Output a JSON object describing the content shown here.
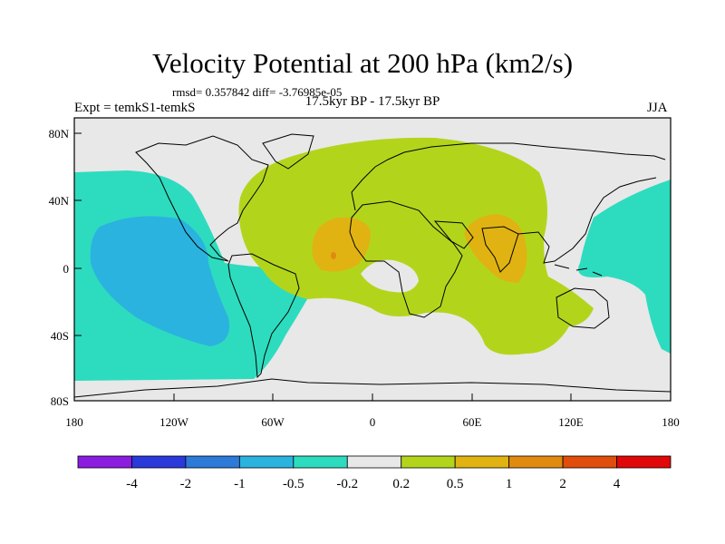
{
  "title": "Velocity Potential at 200 hPa (km2/s)",
  "stats": "rmsd= 0.357842 diff= -3.76985e-05",
  "experiment": "Expt = temkS1-temkS",
  "period": "17.5kyr BP - 17.5kyr BP",
  "season": "JJA",
  "lat_labels": [
    "80N",
    "40N",
    "0",
    "40S",
    "80S"
  ],
  "lon_labels": [
    "180",
    "120W",
    "60W",
    "0",
    "60E",
    "120E",
    "180"
  ],
  "colorbar": {
    "labels": [
      "-4",
      "-2",
      "-1",
      "-0.5",
      "-0.2",
      "0.2",
      "0.5",
      "1",
      "2",
      "4"
    ],
    "colors": [
      "#8a1de0",
      "#2a39da",
      "#2e7ad8",
      "#2bb3e0",
      "#2ddcbe",
      "#e8e8e8",
      "#b2d51c",
      "#e0b312",
      "#e08a10",
      "#e04d0c",
      "#e00808"
    ]
  },
  "map_colors": {
    "background": "#e8e8e8",
    "neg_weak": "#2ddcbe",
    "neg_moderate": "#2bb3e0",
    "pos_weak": "#b2d51c",
    "pos_moderate": "#e0b312",
    "pos_strong": "#e08a10"
  }
}
